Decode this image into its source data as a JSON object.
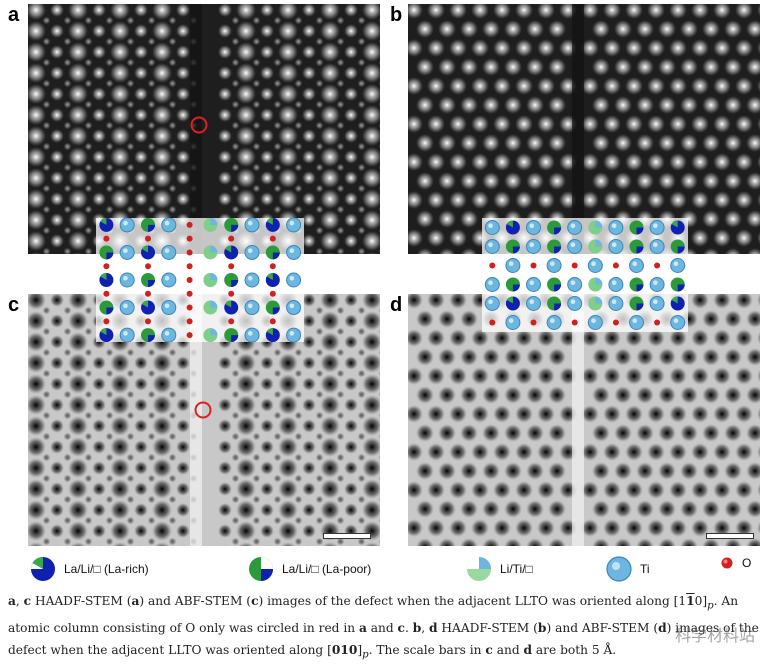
{
  "panels": [
    {
      "label": "a",
      "mode": "haadf",
      "lattice": "square"
    },
    {
      "label": "b",
      "mode": "haadf",
      "lattice": "hex"
    },
    {
      "label": "c",
      "mode": "abf",
      "lattice": "square"
    },
    {
      "label": "d",
      "mode": "abf",
      "lattice": "hex"
    }
  ],
  "legend": [
    {
      "icon": "la-rich-atom-icon",
      "text": "La/Li/□ (La-rich)",
      "color": "#1020b0"
    },
    {
      "icon": "la-poor-atom-icon",
      "text": "La/Li/□ (La-poor)",
      "color": "#2a9a3a"
    },
    {
      "icon": "li-ti-atom-icon",
      "text": "Li/Ti/□",
      "color": "#7fcf8a"
    },
    {
      "icon": "ti-atom-icon",
      "text": "Ti",
      "color": "#6cb6e0"
    },
    {
      "icon": "o-atom-icon",
      "text": "O",
      "color": "#d02020"
    }
  ],
  "caption": {
    "line1_a": "a",
    "line1_sep1": ", ",
    "line1_c": "c",
    "line1_t1": " HAADF-STEM (",
    "line1_a2": "a",
    "line1_t2": ") and ABF-STEM (",
    "line1_c2": "c",
    "line1_t3": ") images of the defect when the adjacent LLTO was oriented along [1",
    "line1_bar": "1",
    "line1_t4": "0]",
    "line1_p": "p",
    "line1_t5": ". An",
    "line2_t1": "atomic column consisting of O only was circled in red in ",
    "line2_a": "a",
    "line2_t2": " and ",
    "line2_c": "c",
    "line2_t3": ". ",
    "line2_b": "b",
    "line2_t4": ", ",
    "line2_d": "d",
    "line2_t5": " HAADF-STEM (",
    "line2_b2": "b",
    "line2_t6": ") and ABF-STEM (",
    "line2_d2": "d",
    "line2_t7": ") images of the",
    "line3_t1": "defect when the adjacent LLTO was oriented along [",
    "line3_dir": "010",
    "line3_t2": "]",
    "line3_p": "p",
    "line3_t3": ". The scale bars in ",
    "line3_c": "c",
    "line3_t4": " and ",
    "line3_d": "d",
    "line3_t5": " are both 5 Å."
  },
  "watermark": "科学材料站",
  "colors": {
    "o_circle": "#e02020",
    "la_rich": "#1020b0",
    "la_poor": "#2a9a3a",
    "ti": "#6cb6e0",
    "li_ti": "#7fcf8a"
  }
}
